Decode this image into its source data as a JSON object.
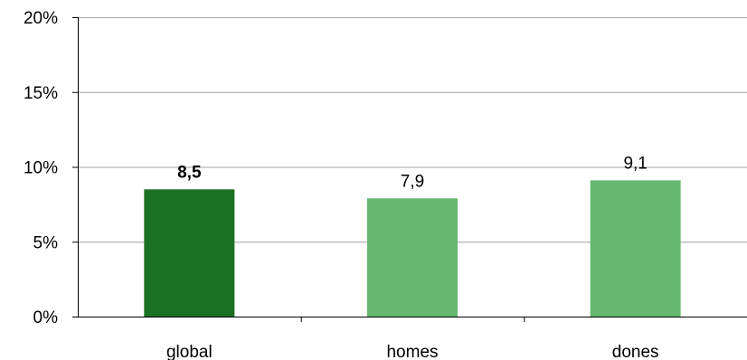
{
  "chart_data": {
    "type": "bar",
    "categories": [
      "global",
      "homes",
      "dones"
    ],
    "values": [
      8.5,
      7.9,
      9.1
    ],
    "data_labels": [
      "8,5",
      "7,9",
      "9,1"
    ],
    "bold_labels": [
      true,
      false,
      false
    ],
    "bar_colors": [
      "#1b7222",
      "#66b870",
      "#66b870"
    ],
    "ylim": [
      0,
      20
    ],
    "yticks": [
      0,
      5,
      10,
      15,
      20
    ],
    "ytick_labels": [
      "0%",
      "5%",
      "10%",
      "15%",
      "20%"
    ],
    "grid": true,
    "grid_color": "#b3b3b3",
    "title": "",
    "xlabel": "",
    "ylabel": ""
  }
}
